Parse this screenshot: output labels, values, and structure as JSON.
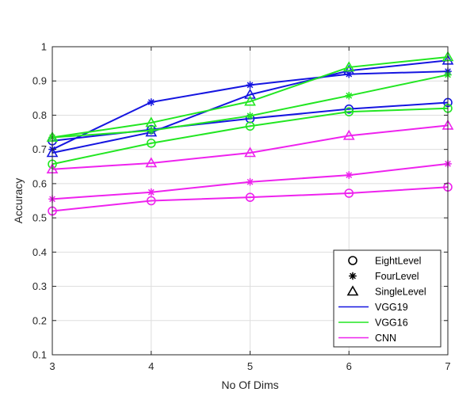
{
  "chart_data": {
    "type": "line",
    "title": "",
    "xlabel": "No Of Dims",
    "ylabel": "Accuracy",
    "xlim": [
      3,
      7
    ],
    "ylim": [
      0.1,
      1.0
    ],
    "x": [
      3,
      4,
      5,
      6,
      7
    ],
    "xticks": [
      "3",
      "4",
      "5",
      "6",
      "7"
    ],
    "yticks": [
      "0.1",
      "0.2",
      "0.3",
      "0.4",
      "0.5",
      "0.6",
      "0.7",
      "0.8",
      "0.9",
      "1"
    ],
    "grid": true,
    "legend_position": "bottom-right",
    "marker_legend": [
      {
        "label": "EightLevel",
        "marker": "circle"
      },
      {
        "label": "FourLevel",
        "marker": "asterisk"
      },
      {
        "label": "SingleLevel",
        "marker": "triangle"
      }
    ],
    "model_legend": [
      {
        "label": "VGG19",
        "color": "#1515e0"
      },
      {
        "label": "VGG16",
        "color": "#22e622"
      },
      {
        "label": "CNN",
        "color": "#ee22ee"
      }
    ],
    "series": [
      {
        "model": "VGG19",
        "level": "EightLevel",
        "marker": "circle",
        "color": "#1515e0",
        "values": [
          0.725,
          0.758,
          0.79,
          0.818,
          0.837
        ]
      },
      {
        "model": "VGG19",
        "level": "FourLevel",
        "marker": "asterisk",
        "color": "#1515e0",
        "values": [
          0.7,
          0.838,
          0.888,
          0.92,
          0.928
        ]
      },
      {
        "model": "VGG19",
        "level": "SingleLevel",
        "marker": "triangle",
        "color": "#1515e0",
        "values": [
          0.69,
          0.75,
          0.86,
          0.93,
          0.96
        ]
      },
      {
        "model": "VGG16",
        "level": "EightLevel",
        "marker": "circle",
        "color": "#22e622",
        "values": [
          0.657,
          0.718,
          0.768,
          0.81,
          0.82
        ]
      },
      {
        "model": "VGG16",
        "level": "FourLevel",
        "marker": "asterisk",
        "color": "#22e622",
        "values": [
          0.735,
          0.755,
          0.798,
          0.857,
          0.918
        ]
      },
      {
        "model": "VGG16",
        "level": "SingleLevel",
        "marker": "triangle",
        "color": "#22e622",
        "values": [
          0.735,
          0.778,
          0.84,
          0.94,
          0.97
        ]
      },
      {
        "model": "CNN",
        "level": "EightLevel",
        "marker": "circle",
        "color": "#ee22ee",
        "values": [
          0.52,
          0.55,
          0.56,
          0.572,
          0.59
        ]
      },
      {
        "model": "CNN",
        "level": "FourLevel",
        "marker": "asterisk",
        "color": "#ee22ee",
        "values": [
          0.555,
          0.575,
          0.605,
          0.625,
          0.658
        ]
      },
      {
        "model": "CNN",
        "level": "SingleLevel",
        "marker": "triangle",
        "color": "#ee22ee",
        "values": [
          0.642,
          0.66,
          0.69,
          0.74,
          0.77
        ]
      }
    ]
  }
}
